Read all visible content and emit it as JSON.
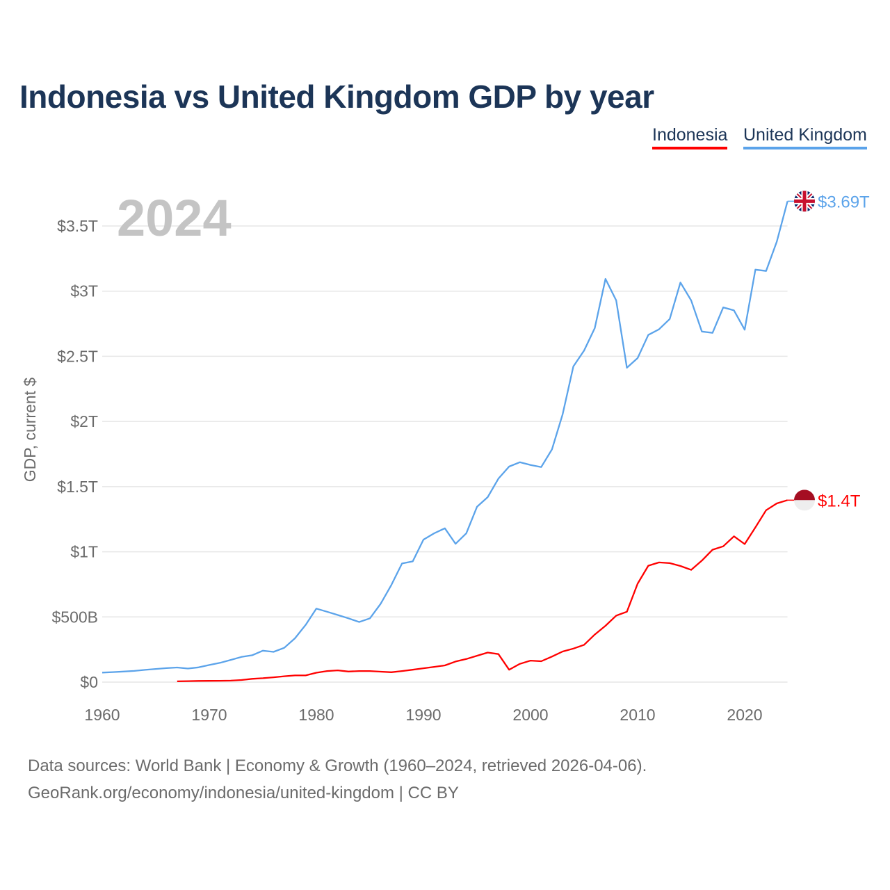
{
  "chart_data": {
    "type": "line",
    "title": "Indonesia vs United Kingdom GDP by year",
    "ylabel": "GDP, current $",
    "xlabel": "",
    "watermark_year": "2024",
    "xlim": [
      1960,
      2024
    ],
    "ylim": [
      0,
      3.7
    ],
    "y_unit": "trillion USD",
    "x_ticks": [
      1960,
      1970,
      1980,
      1990,
      2000,
      2010,
      2020
    ],
    "y_ticks": [
      {
        "v": 0,
        "label": "$0"
      },
      {
        "v": 0.5,
        "label": "$500B"
      },
      {
        "v": 1,
        "label": "$1T"
      },
      {
        "v": 1.5,
        "label": "$1.5T"
      },
      {
        "v": 2,
        "label": "$2T"
      },
      {
        "v": 2.5,
        "label": "$2.5T"
      },
      {
        "v": 3,
        "label": "$3T"
      },
      {
        "v": 3.5,
        "label": "$3.5T"
      }
    ],
    "grid": true,
    "legend_position": "top-right",
    "series": [
      {
        "name": "Indonesia",
        "color": "#ff0000",
        "end_label": "$1.4T",
        "flag": "indonesia-flag",
        "start_year": 1967,
        "values": [
          0.006,
          0.0076,
          0.0093,
          0.0097,
          0.0099,
          0.011,
          0.016,
          0.025,
          0.03,
          0.037,
          0.045,
          0.051,
          0.051,
          0.072,
          0.085,
          0.09,
          0.081,
          0.085,
          0.085,
          0.08,
          0.076,
          0.085,
          0.095,
          0.106,
          0.117,
          0.128,
          0.158,
          0.177,
          0.202,
          0.227,
          0.215,
          0.095,
          0.14,
          0.165,
          0.16,
          0.196,
          0.235,
          0.257,
          0.286,
          0.365,
          0.432,
          0.51,
          0.54,
          0.755,
          0.893,
          0.918,
          0.913,
          0.891,
          0.861,
          0.932,
          1.016,
          1.042,
          1.119,
          1.059,
          1.187,
          1.319,
          1.371,
          1.396
        ]
      },
      {
        "name": "United Kingdom",
        "color": "#5ba3ea",
        "end_label": "$3.69T",
        "flag": "uk-flag",
        "start_year": 1960,
        "values": [
          0.073,
          0.077,
          0.081,
          0.086,
          0.094,
          0.101,
          0.107,
          0.112,
          0.104,
          0.113,
          0.131,
          0.148,
          0.17,
          0.193,
          0.206,
          0.241,
          0.232,
          0.263,
          0.336,
          0.439,
          0.564,
          0.54,
          0.515,
          0.489,
          0.461,
          0.489,
          0.601,
          0.745,
          0.91,
          0.926,
          1.093,
          1.142,
          1.18,
          1.061,
          1.141,
          1.345,
          1.419,
          1.561,
          1.654,
          1.687,
          1.666,
          1.65,
          1.785,
          2.055,
          2.422,
          2.544,
          2.716,
          3.094,
          2.929,
          2.412,
          2.486,
          2.664,
          2.707,
          2.786,
          3.066,
          2.929,
          2.69,
          2.68,
          2.875,
          2.852,
          2.704,
          3.165,
          3.155,
          3.38,
          3.69
        ]
      }
    ]
  },
  "legend": {
    "indonesia": "Indonesia",
    "uk": "United Kingdom"
  },
  "footer": {
    "line1": "Data sources: World Bank | Economy & Growth (1960–2024, retrieved 2026-04-06).",
    "line2": "GeoRank.org/economy/indonesia/united-kingdom | CC BY"
  }
}
